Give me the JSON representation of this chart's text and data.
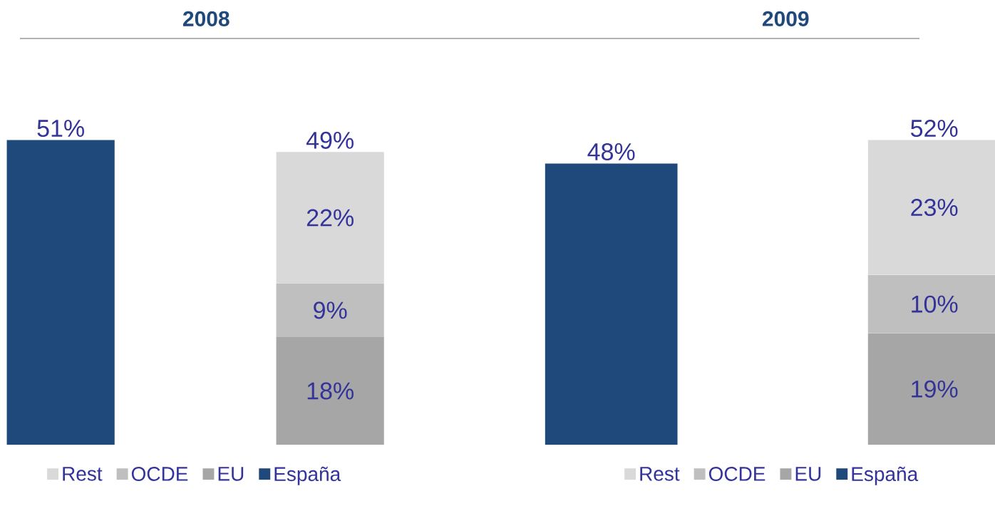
{
  "chart_data": [
    {
      "type": "bar",
      "stacked": true,
      "title": "2008",
      "categories": [
        null,
        null
      ],
      "data_labels": false,
      "legend": "bottom",
      "series": [
        {
          "name": "España",
          "color": "#1f487b",
          "values": [
            51,
            null
          ],
          "value_labels": [
            null,
            null
          ]
        },
        {
          "name": "EU",
          "color": "#a6a6a6",
          "values": [
            null,
            18
          ],
          "value_labels": [
            null,
            "18%"
          ]
        },
        {
          "name": "OCDE",
          "color": "#bfbfbf",
          "values": [
            null,
            9
          ],
          "value_labels": [
            null,
            "9%"
          ]
        },
        {
          "name": "Rest",
          "color": "#d9d9d9",
          "values": [
            null,
            22
          ],
          "value_labels": [
            null,
            "22%"
          ]
        }
      ],
      "totals": [
        "51%",
        "49%"
      ]
    },
    {
      "type": "bar",
      "stacked": true,
      "title": "2009",
      "categories": [
        null,
        null
      ],
      "data_labels": false,
      "legend": "bottom",
      "series": [
        {
          "name": "España",
          "color": "#1f487b",
          "values": [
            48,
            null
          ],
          "value_labels": [
            null,
            null
          ]
        },
        {
          "name": "EU",
          "color": "#a6a6a6",
          "values": [
            null,
            19
          ],
          "value_labels": [
            null,
            "19%"
          ]
        },
        {
          "name": "OCDE",
          "color": "#bfbfbf",
          "values": [
            null,
            10
          ],
          "value_labels": [
            null,
            "10%"
          ]
        },
        {
          "name": "Rest",
          "color": "#d9d9d9",
          "values": [
            null,
            23
          ],
          "value_labels": [
            null,
            "23%"
          ]
        }
      ],
      "totals": [
        "48%",
        "52%"
      ]
    }
  ]
}
